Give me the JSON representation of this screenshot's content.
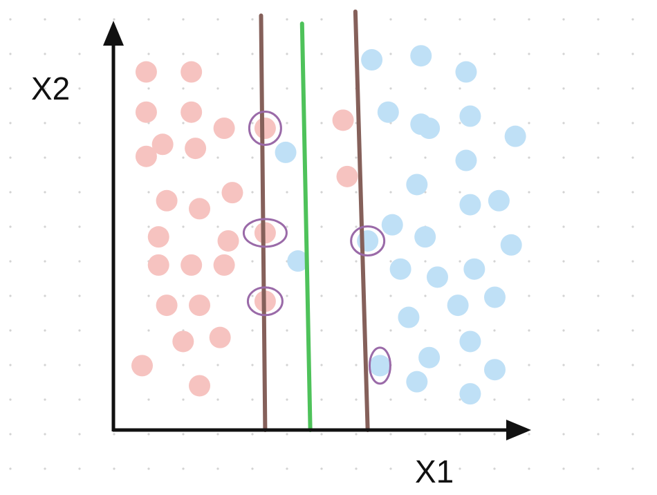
{
  "axes": {
    "x_label": "X1",
    "y_label": "X2"
  },
  "colors": {
    "background_dots": "#d3d3d3",
    "axis": "#111111",
    "class_a": "#f6c3c0",
    "class_b": "#bfe0f6",
    "margin_line": "#85605a",
    "decision_line": "#4ec25a",
    "support_vector_ring": "#9a6aa8"
  },
  "chart_data": {
    "type": "scatter",
    "xlim": [
      0,
      100
    ],
    "ylim": [
      0,
      100
    ],
    "series": [
      {
        "class": "a",
        "points": [
          [
            8,
            89
          ],
          [
            19,
            89
          ],
          [
            8,
            79
          ],
          [
            19,
            79
          ],
          [
            27,
            75
          ],
          [
            12,
            71
          ],
          [
            20,
            70
          ],
          [
            8,
            68
          ],
          [
            13,
            57
          ],
          [
            21,
            55
          ],
          [
            29,
            59
          ],
          [
            11,
            48
          ],
          [
            28,
            47
          ],
          [
            11,
            41
          ],
          [
            19,
            41
          ],
          [
            27,
            41
          ],
          [
            13,
            31
          ],
          [
            21,
            31
          ],
          [
            26,
            23
          ],
          [
            17,
            22
          ],
          [
            7,
            16
          ],
          [
            21,
            11
          ],
          [
            37,
            75
          ],
          [
            37,
            49
          ],
          [
            37,
            32
          ],
          [
            56,
            77
          ],
          [
            57,
            63
          ]
        ]
      },
      {
        "class": "b",
        "points": [
          [
            63,
            92
          ],
          [
            75,
            93
          ],
          [
            86,
            89
          ],
          [
            67,
            79
          ],
          [
            75,
            76
          ],
          [
            77,
            75
          ],
          [
            87,
            78
          ],
          [
            98,
            73
          ],
          [
            86,
            67
          ],
          [
            74,
            61
          ],
          [
            87,
            56
          ],
          [
            94,
            57
          ],
          [
            68,
            51
          ],
          [
            76,
            48
          ],
          [
            97,
            46
          ],
          [
            70,
            40
          ],
          [
            79,
            38
          ],
          [
            88,
            40
          ],
          [
            84,
            31
          ],
          [
            93,
            33
          ],
          [
            72,
            28
          ],
          [
            87,
            22
          ],
          [
            77,
            18
          ],
          [
            74,
            12
          ],
          [
            87,
            9
          ],
          [
            93,
            15
          ],
          [
            42,
            69
          ],
          [
            45,
            42
          ],
          [
            62,
            47
          ],
          [
            65,
            16
          ]
        ]
      }
    ],
    "lines": [
      {
        "role": "margin",
        "from": [
          36,
          103
        ],
        "to": [
          37,
          0
        ]
      },
      {
        "role": "decision",
        "from": [
          46,
          101
        ],
        "to": [
          48,
          0
        ]
      },
      {
        "role": "margin",
        "from": [
          59,
          104
        ],
        "to": [
          62,
          0
        ]
      }
    ],
    "support_vectors": [
      [
        37,
        75
      ],
      [
        37,
        49
      ],
      [
        37,
        32
      ],
      [
        62,
        47
      ],
      [
        65,
        16
      ]
    ]
  }
}
